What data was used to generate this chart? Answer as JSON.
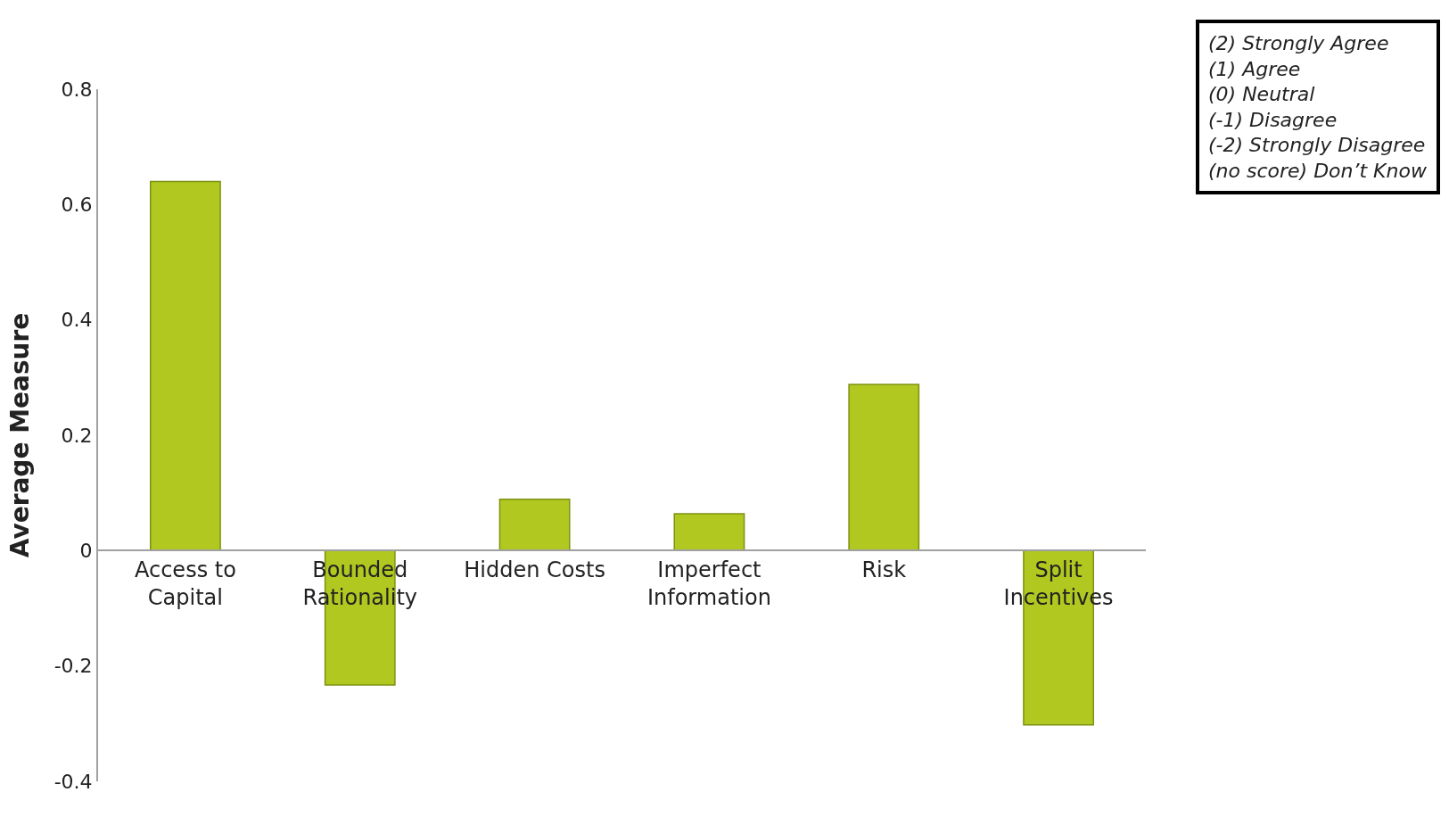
{
  "chart_data": {
    "type": "bar",
    "ylabel": "Average Measure",
    "categories": [
      "Access to Capital",
      "Bounded Rationality",
      "Hidden Costs",
      "Imperfect Information",
      "Risk",
      "Split Incentives"
    ],
    "values": [
      0.64,
      -0.233,
      0.089,
      0.064,
      0.288,
      -0.302
    ],
    "color": "#b0c820",
    "ylim": [
      -0.4,
      0.8
    ],
    "yticks": [
      -0.4,
      -0.2,
      0,
      0.2,
      0.4,
      0.6,
      0.8
    ],
    "annotations": [
      "(2) Strongly Agree\n(1) Agree\n(0) Neutral\n(-1) Disagree\n(-2) Strongly Disagree\n(no score) Don’t Know"
    ]
  }
}
